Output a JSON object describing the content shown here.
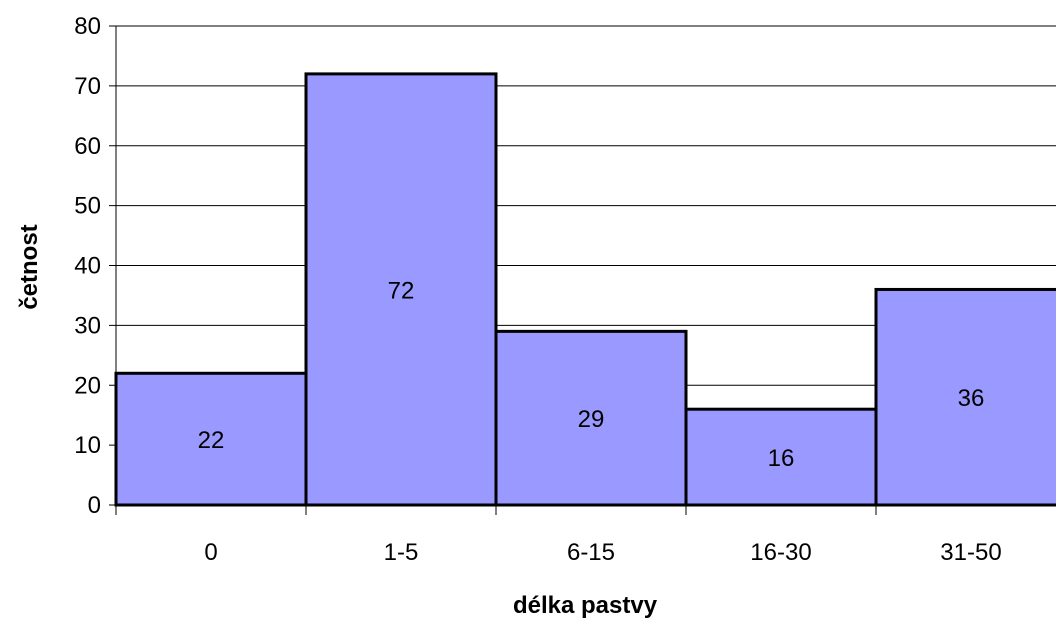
{
  "chart_data": {
    "type": "bar",
    "title": "",
    "xlabel": "délka pastvy",
    "ylabel": "četnost",
    "categories": [
      "0",
      "1-5",
      "6-15",
      "16-30",
      "31-50"
    ],
    "values": [
      22,
      72,
      29,
      16,
      36
    ],
    "data_labels": [
      "22",
      "72",
      "29",
      "16",
      "36"
    ],
    "ylim": [
      0,
      80
    ],
    "yticks": [
      0,
      10,
      20,
      30,
      40,
      50,
      60,
      70,
      80
    ],
    "ytick_labels": [
      "0",
      "10",
      "20",
      "30",
      "40",
      "50",
      "60",
      "70",
      "80"
    ],
    "grid": true,
    "legend": "none",
    "colors": {
      "bar_fill": "#9999FF",
      "bar_stroke": "#000000",
      "grid": "#000000",
      "axis": "#000000"
    }
  }
}
